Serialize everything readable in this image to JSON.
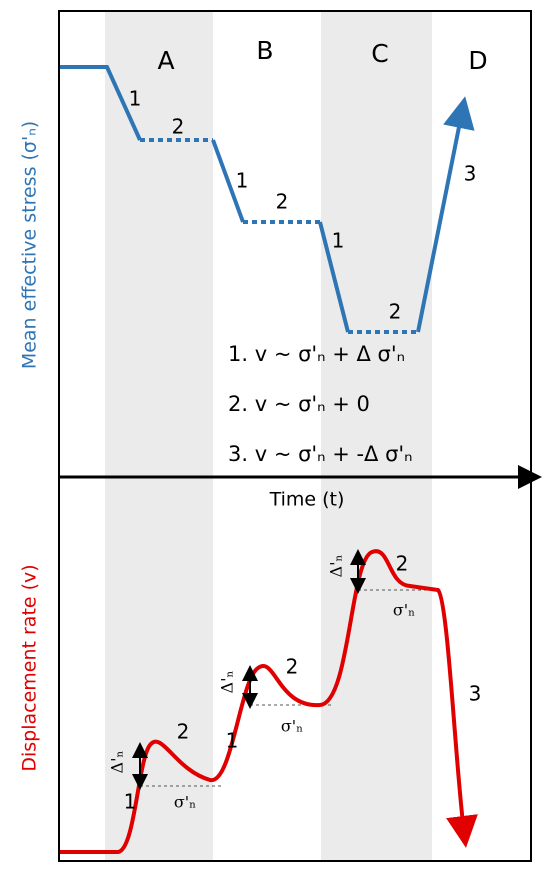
{
  "phases": [
    "A",
    "B",
    "C",
    "D"
  ],
  "top_panel": {
    "y_axis_label": "Mean effective stress (σ'ₙ)",
    "step_labels": [
      "1",
      "2",
      "1",
      "2",
      "1",
      "2",
      "3"
    ],
    "equations": [
      "1. v ~ σ'ₙ + Δ σ'ₙ",
      "2. v ~ σ'ₙ + 0",
      "3. v ~ σ'ₙ +  -Δ σ'ₙ"
    ]
  },
  "x_axis_label": "Time (t)",
  "bottom_panel": {
    "y_axis_label": "Displacement rate (v)",
    "step_labels": [
      "1",
      "2",
      "1",
      "2",
      "2",
      "3"
    ],
    "delta_labels": [
      "Δ'ₙ",
      "Δ'ₙ",
      "Δ'ₙ"
    ],
    "baseline_labels": [
      "σ'ₙ",
      "σ'ₙ",
      "σ'ₙ"
    ]
  }
}
